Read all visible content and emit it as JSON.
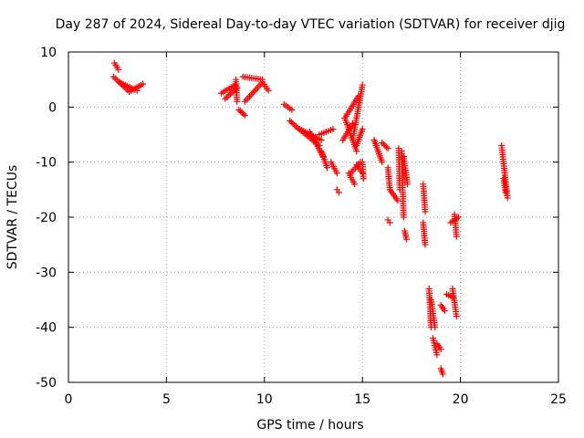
{
  "chart_data": {
    "type": "scatter",
    "title": "Day 287 of 2024, Sidereal Day-to-day VTEC variation (SDTVAR) for receiver djig",
    "xlabel": "GPS time / hours",
    "ylabel": "SDTVAR / TECUs",
    "xlim": [
      0,
      25
    ],
    "ylim": [
      -50,
      10
    ],
    "xticks": [
      0,
      5,
      10,
      15,
      20,
      25
    ],
    "yticks": [
      -50,
      -40,
      -30,
      -20,
      -10,
      0,
      10
    ],
    "grid": true,
    "marker": "plus",
    "colors": {
      "series": "#ff0000",
      "grid": "#a0a0a0",
      "axis": "#000000"
    },
    "series": [
      {
        "name": "",
        "segments": [
          {
            "x0": 2.35,
            "x1": 2.55,
            "y0": 8.0,
            "y1": 6.8
          },
          {
            "x0": 2.3,
            "x1": 3.1,
            "y0": 5.5,
            "y1": 2.8
          },
          {
            "x0": 3.1,
            "x1": 3.8,
            "y0": 2.8,
            "y1": 4.2
          },
          {
            "x0": 2.6,
            "x1": 3.5,
            "y0": 4.5,
            "y1": 3.0
          },
          {
            "x0": 7.8,
            "x1": 8.5,
            "y0": 2.5,
            "y1": 4.0
          },
          {
            "x0": 8.0,
            "x1": 8.6,
            "y0": 1.5,
            "y1": 3.5
          },
          {
            "x0": 8.55,
            "x1": 8.6,
            "y0": 5.0,
            "y1": 1.0
          },
          {
            "x0": 8.9,
            "x1": 9.9,
            "y0": 5.5,
            "y1": 5.0
          },
          {
            "x0": 9.0,
            "x1": 9.9,
            "y0": 1.0,
            "y1": 4.5
          },
          {
            "x0": 8.7,
            "x1": 9.0,
            "y0": -0.5,
            "y1": -1.5
          },
          {
            "x0": 9.9,
            "x1": 10.2,
            "y0": 4.5,
            "y1": 3.0
          },
          {
            "x0": 11.0,
            "x1": 11.4,
            "y0": 0.5,
            "y1": -0.5
          },
          {
            "x0": 11.3,
            "x1": 11.6,
            "y0": -2.5,
            "y1": -3.5
          },
          {
            "x0": 11.6,
            "x1": 12.8,
            "y0": -3.5,
            "y1": -7.0
          },
          {
            "x0": 11.8,
            "x1": 12.9,
            "y0": -4.0,
            "y1": -6.0
          },
          {
            "x0": 12.3,
            "x1": 13.0,
            "y0": -4.5,
            "y1": -9.0
          },
          {
            "x0": 12.8,
            "x1": 13.5,
            "y0": -5.0,
            "y1": -4.0
          },
          {
            "x0": 12.9,
            "x1": 13.2,
            "y0": -8.0,
            "y1": -11.0
          },
          {
            "x0": 13.7,
            "x1": 13.8,
            "y0": -15.0,
            "y1": -15.5
          },
          {
            "x0": 13.4,
            "x1": 13.7,
            "y0": -10.0,
            "y1": -12.0
          },
          {
            "x0": 14.0,
            "x1": 14.5,
            "y0": -6.0,
            "y1": -3.0
          },
          {
            "x0": 14.3,
            "x1": 14.6,
            "y0": -12.0,
            "y1": -14.0
          },
          {
            "x0": 14.4,
            "x1": 14.9,
            "y0": -12.0,
            "y1": -10.0
          },
          {
            "x0": 14.1,
            "x1": 14.8,
            "y0": -2.0,
            "y1": 2.0
          },
          {
            "x0": 14.5,
            "x1": 15.0,
            "y0": -6.0,
            "y1": 4.0
          },
          {
            "x0": 14.1,
            "x1": 14.7,
            "y0": -2.0,
            "y1": -8.0
          },
          {
            "x0": 14.7,
            "x1": 15.0,
            "y0": -7.0,
            "y1": -4.0
          },
          {
            "x0": 14.7,
            "x1": 15.0,
            "y0": -10.5,
            "y1": -12.0
          },
          {
            "x0": 15.0,
            "x1": 15.05,
            "y0": -10.0,
            "y1": -13.0
          },
          {
            "x0": 15.6,
            "x1": 15.7,
            "y0": -6.0,
            "y1": -7.0
          },
          {
            "x0": 15.7,
            "x1": 16.0,
            "y0": -7.0,
            "y1": -10.0
          },
          {
            "x0": 16.0,
            "x1": 16.3,
            "y0": -6.5,
            "y1": -7.5
          },
          {
            "x0": 16.3,
            "x1": 16.4,
            "y0": -11.0,
            "y1": -15.0
          },
          {
            "x0": 16.4,
            "x1": 16.8,
            "y0": -15.0,
            "y1": -17.0
          },
          {
            "x0": 16.3,
            "x1": 16.4,
            "y0": -20.5,
            "y1": -21.0
          },
          {
            "x0": 16.85,
            "x1": 16.9,
            "y0": -7.5,
            "y1": -15.0
          },
          {
            "x0": 17.0,
            "x1": 17.1,
            "y0": -8.0,
            "y1": -20.0
          },
          {
            "x0": 17.1,
            "x1": 17.3,
            "y0": -9.0,
            "y1": -14.0
          },
          {
            "x0": 17.15,
            "x1": 17.25,
            "y0": -22.5,
            "y1": -24.0
          },
          {
            "x0": 18.1,
            "x1": 18.2,
            "y0": -14.0,
            "y1": -19.0
          },
          {
            "x0": 18.1,
            "x1": 18.2,
            "y0": -21.0,
            "y1": -25.0
          },
          {
            "x0": 18.4,
            "x1": 18.5,
            "y0": -33.0,
            "y1": -40.0
          },
          {
            "x0": 18.5,
            "x1": 18.7,
            "y0": -35.0,
            "y1": -40.0
          },
          {
            "x0": 18.6,
            "x1": 18.8,
            "y0": -42.0,
            "y1": -45.0
          },
          {
            "x0": 18.8,
            "x1": 19.0,
            "y0": -43.0,
            "y1": -44.0
          },
          {
            "x0": 19.0,
            "x1": 19.1,
            "y0": -47.5,
            "y1": -48.5
          },
          {
            "x0": 19.0,
            "x1": 19.2,
            "y0": -36.0,
            "y1": -37.0
          },
          {
            "x0": 19.3,
            "x1": 19.6,
            "y0": -34.0,
            "y1": -34.5
          },
          {
            "x0": 19.6,
            "x1": 19.8,
            "y0": -33.0,
            "y1": -38.0
          },
          {
            "x0": 19.5,
            "x1": 19.9,
            "y0": -21.0,
            "y1": -20.0
          },
          {
            "x0": 19.7,
            "x1": 19.8,
            "y0": -19.5,
            "y1": -23.5
          },
          {
            "x0": 22.1,
            "x1": 22.4,
            "y0": -7.0,
            "y1": -16.5
          },
          {
            "x0": 22.2,
            "x1": 22.3,
            "y0": -13.0,
            "y1": -15.5
          }
        ]
      }
    ]
  }
}
